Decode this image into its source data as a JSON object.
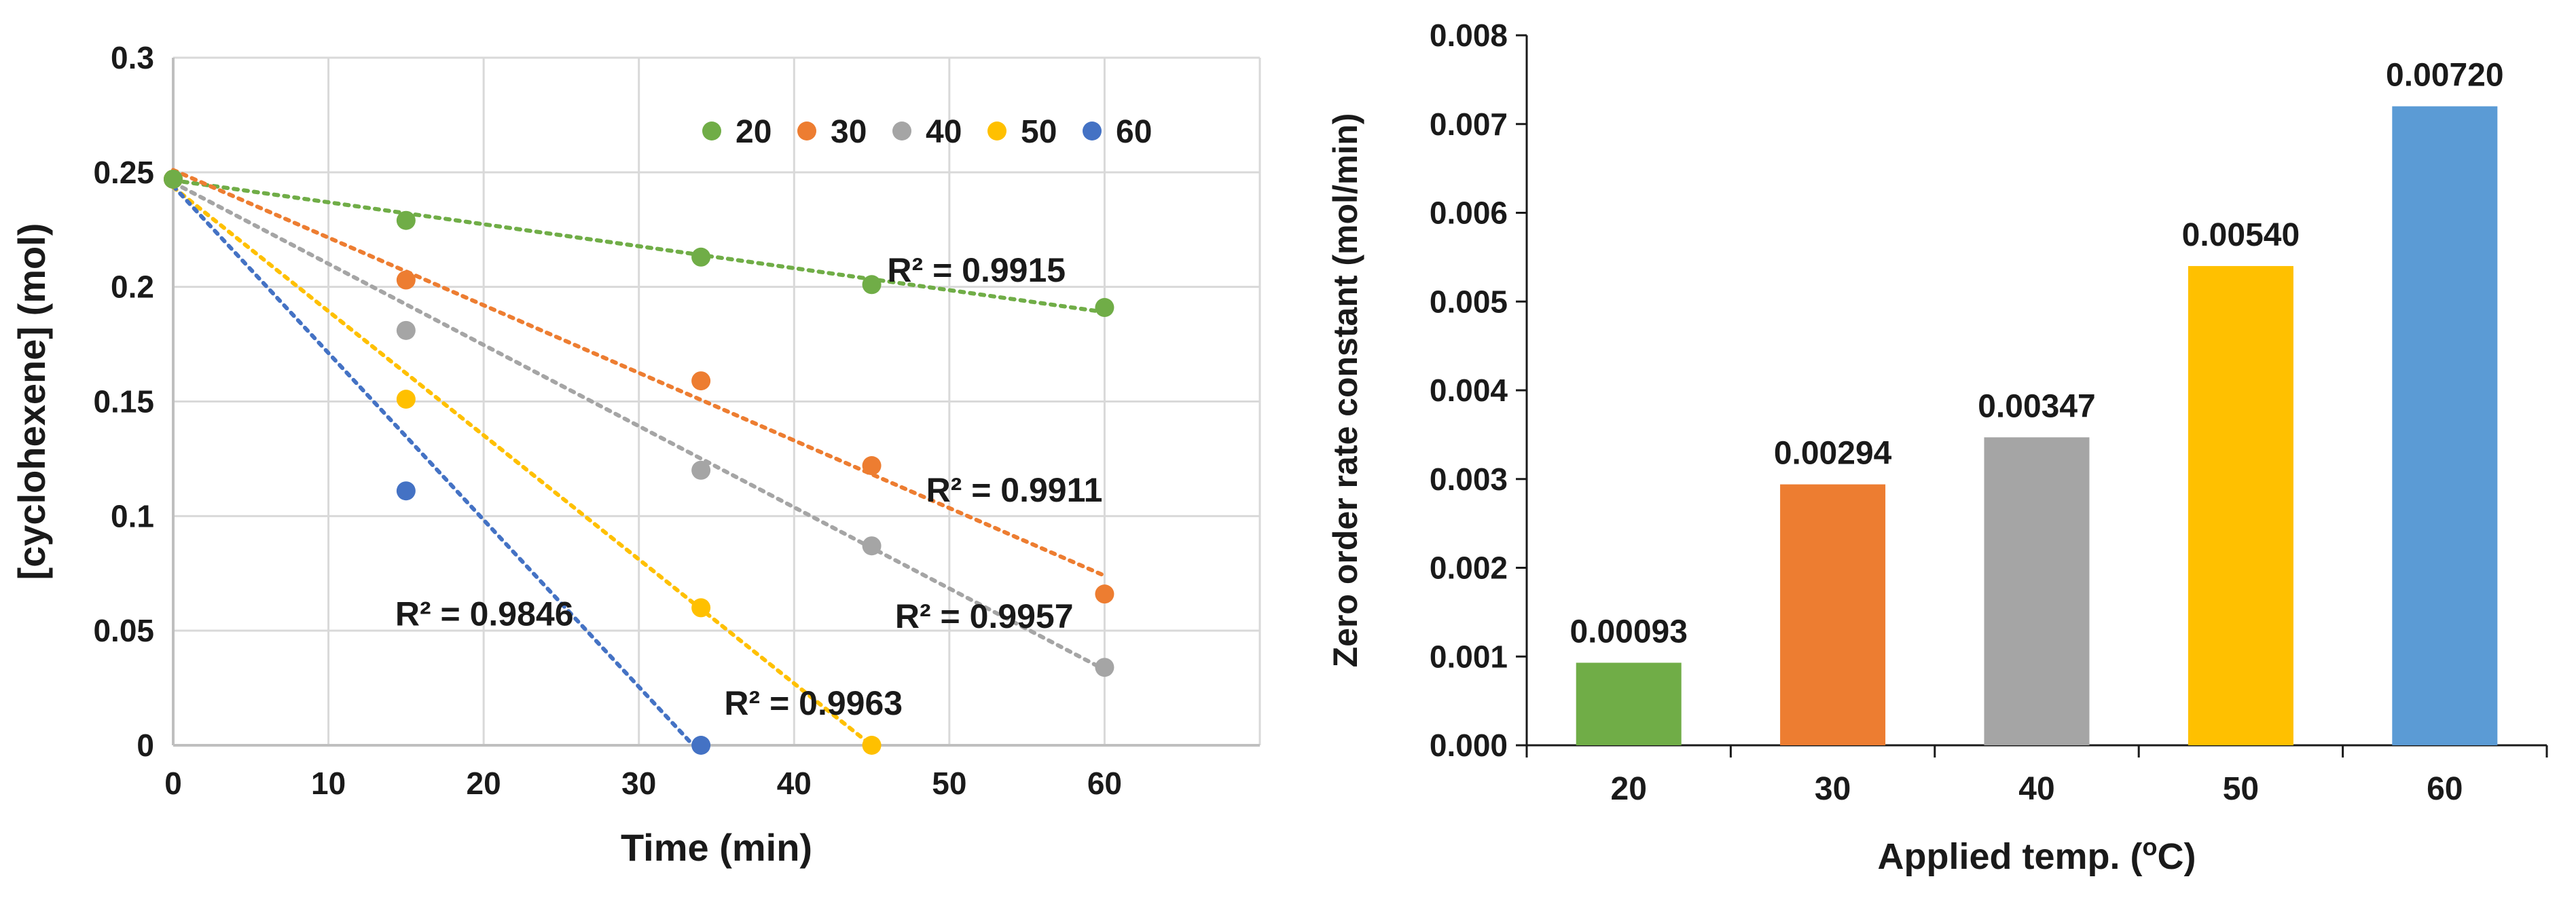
{
  "chart_data": [
    {
      "type": "scatter",
      "title": "",
      "xlabel": "Time (min)",
      "ylabel": "[cyclohexene] (mol)",
      "xlim": [
        0,
        70
      ],
      "ylim": [
        0,
        0.3
      ],
      "xticks": [
        "0",
        "10",
        "20",
        "30",
        "40",
        "50",
        "60"
      ],
      "xtick_values": [
        0,
        10,
        20,
        30,
        40,
        50,
        60
      ],
      "yticks": [
        "0",
        "0.05",
        "0.1",
        "0.15",
        "0.2",
        "0.25",
        "0.3"
      ],
      "ytick_values": [
        0,
        0.05,
        0.1,
        0.15,
        0.2,
        0.25,
        0.3
      ],
      "grid": true,
      "legend_position": "top-right",
      "series": [
        {
          "name": "20",
          "color": "#70AD47",
          "x": [
            0,
            15,
            34,
            45,
            60
          ],
          "y": [
            0.247,
            0.229,
            0.213,
            0.201,
            0.191
          ],
          "trend": [
            0.2465,
            0.189
          ],
          "r2_label": "R² = 0.9915",
          "r2_at": [
            46,
            0.207
          ]
        },
        {
          "name": "30",
          "color": "#ED7D31",
          "x": [
            0,
            15,
            34,
            45,
            60
          ],
          "y": [
            0.247,
            0.203,
            0.159,
            0.122,
            0.066
          ],
          "trend": [
            0.251,
            0.074
          ],
          "r2_label": "R² = 0.9911",
          "r2_at": [
            48.5,
            0.111
          ]
        },
        {
          "name": "40",
          "color": "#A5A5A5",
          "x": [
            0,
            15,
            34,
            45,
            60
          ],
          "y": [
            0.247,
            0.181,
            0.12,
            0.087,
            0.034
          ],
          "trend": [
            0.2455,
            0.033
          ],
          "r2_label": "R² = 0.9957",
          "r2_at": [
            46.5,
            0.056
          ]
        },
        {
          "name": "50",
          "color": "#FFC000",
          "x": [
            0,
            15,
            34,
            45
          ],
          "y": [
            0.247,
            0.151,
            0.06,
            0.0
          ],
          "trend": [
            0.2435,
            -0.0001
          ],
          "trend_x": [
            0,
            45
          ],
          "r2_label": "R² = 0.9963",
          "r2_at": [
            35.5,
            0.018
          ]
        },
        {
          "name": "60",
          "color": "#4472C4",
          "x": [
            0,
            15,
            34
          ],
          "y": [
            0.247,
            0.111,
            0.0
          ],
          "trend": [
            0.244,
            0.0
          ],
          "trend_x": [
            0,
            33.5
          ],
          "r2_label": "R² = 0.9846",
          "r2_at": [
            14.3,
            0.057
          ]
        }
      ]
    },
    {
      "type": "bar",
      "title": "",
      "xlabel_main": "Applied temp. (",
      "xlabel_sup": "o",
      "xlabel_end": "C)",
      "ylabel": "Zero order rate constant  (mol/min)",
      "categories": [
        "20",
        "30",
        "40",
        "50",
        "60"
      ],
      "values": [
        0.00093,
        0.00294,
        0.00347,
        0.0054,
        0.0072
      ],
      "value_labels": [
        "0.00093",
        "0.00294",
        "0.00347",
        "0.00540",
        "0.00720"
      ],
      "colors": [
        "#70AD47",
        "#ED7D31",
        "#A5A5A5",
        "#FFC000",
        "#5B9BD5"
      ],
      "ylim": [
        0,
        0.008
      ],
      "yticks": [
        "0.000",
        "0.001",
        "0.002",
        "0.003",
        "0.004",
        "0.005",
        "0.006",
        "0.007",
        "0.008"
      ],
      "ytick_values": [
        0,
        0.001,
        0.002,
        0.003,
        0.004,
        0.005,
        0.006,
        0.007,
        0.008
      ],
      "grid": false
    }
  ]
}
